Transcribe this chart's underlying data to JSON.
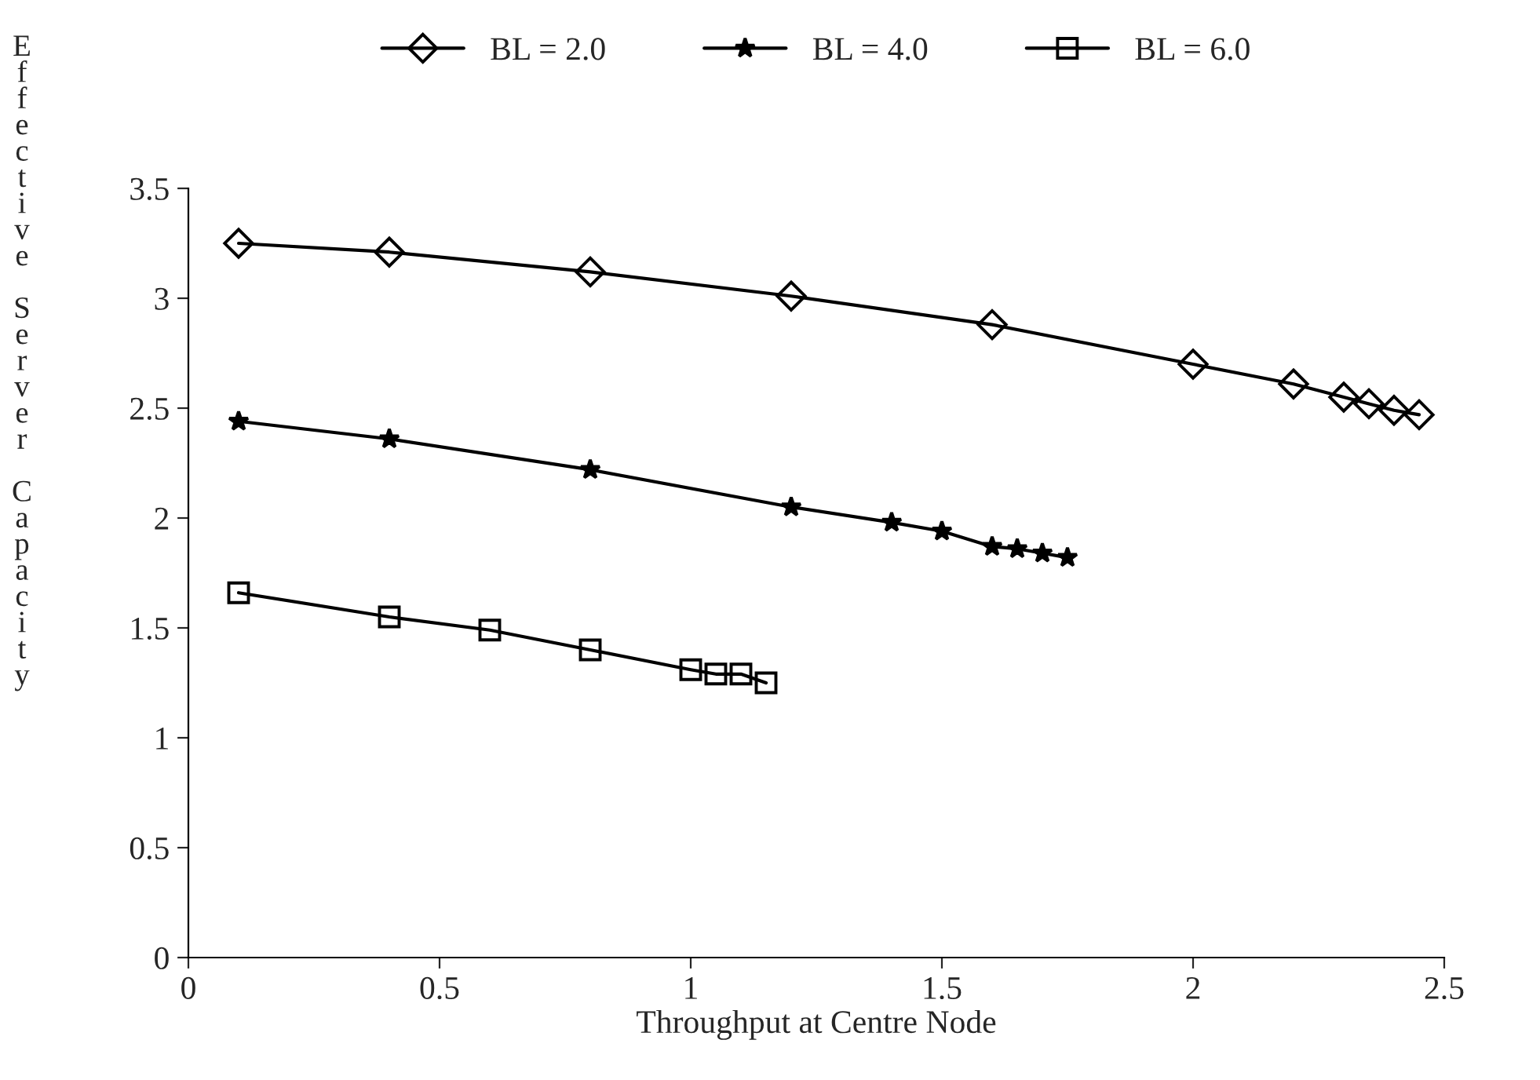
{
  "chart_data": {
    "type": "line",
    "xlabel": "Throughput at Centre Node",
    "ylabel": "Effective Server Capacity",
    "xlim": [
      0,
      2.5
    ],
    "xticks": [
      0,
      0.5,
      1,
      1.5,
      2,
      2.5
    ],
    "ylim": [
      0,
      3.5
    ],
    "yticks": [
      0,
      0.5,
      1,
      1.5,
      2,
      2.5,
      3,
      3.5
    ],
    "grid": false,
    "legend": "top",
    "line_style": "solid",
    "series": [
      {
        "name": "BL = 2.0",
        "color": "#000000",
        "marker": "diamond",
        "x": [
          0.1,
          0.4,
          0.8,
          1.2,
          1.6,
          2.0,
          2.2,
          2.3,
          2.35,
          2.4,
          2.45
        ],
        "values": [
          3.25,
          3.21,
          3.12,
          3.01,
          2.88,
          2.7,
          2.61,
          2.55,
          2.52,
          2.49,
          2.47
        ]
      },
      {
        "name": "BL = 4.0",
        "color": "#000000",
        "marker": "star",
        "x": [
          0.1,
          0.4,
          0.8,
          1.2,
          1.4,
          1.5,
          1.6,
          1.65,
          1.7,
          1.75
        ],
        "values": [
          2.44,
          2.36,
          2.22,
          2.05,
          1.98,
          1.94,
          1.87,
          1.86,
          1.84,
          1.82
        ]
      },
      {
        "name": "BL = 6.0",
        "color": "#000000",
        "marker": "square",
        "x": [
          0.1,
          0.4,
          0.6,
          0.8,
          1.0,
          1.05,
          1.1,
          1.15
        ],
        "values": [
          1.66,
          1.55,
          1.49,
          1.4,
          1.31,
          1.29,
          1.29,
          1.25
        ]
      }
    ]
  }
}
